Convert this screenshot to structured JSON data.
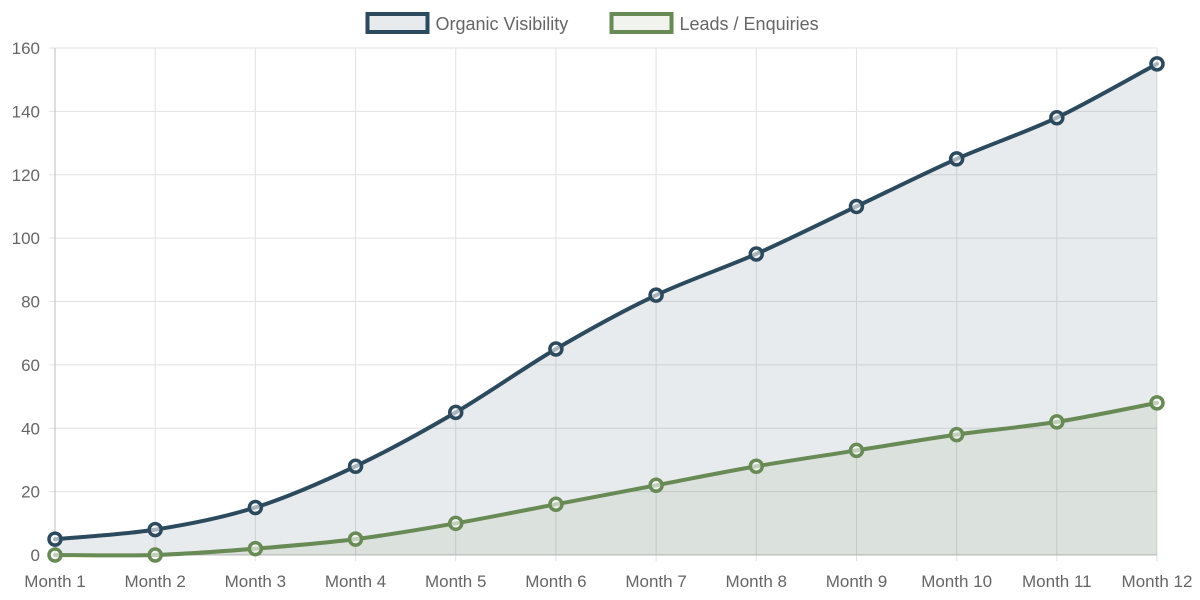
{
  "chart_data": {
    "type": "line",
    "title": "",
    "xlabel": "",
    "ylabel": "",
    "categories": [
      "Month 1",
      "Month 2",
      "Month 3",
      "Month 4",
      "Month 5",
      "Month 6",
      "Month 7",
      "Month 8",
      "Month 9",
      "Month 10",
      "Month 11",
      "Month 12"
    ],
    "ylim": [
      0,
      160
    ],
    "yticks": [
      0,
      20,
      40,
      60,
      80,
      100,
      120,
      140,
      160
    ],
    "grid": true,
    "legend_position": "top-center",
    "series": [
      {
        "name": "Organic Visibility",
        "color": "#2c4a5e",
        "fill": "rgba(44, 74, 94, 0.11)",
        "values": [
          5,
          8,
          15,
          28,
          45,
          65,
          82,
          95,
          110,
          125,
          138,
          155
        ]
      },
      {
        "name": "Leads / Enquiries",
        "color": "#688a55",
        "fill": "rgba(104, 138, 85, 0.10)",
        "values": [
          0,
          0,
          2,
          5,
          10,
          16,
          22,
          28,
          33,
          38,
          42,
          48
        ]
      }
    ]
  }
}
